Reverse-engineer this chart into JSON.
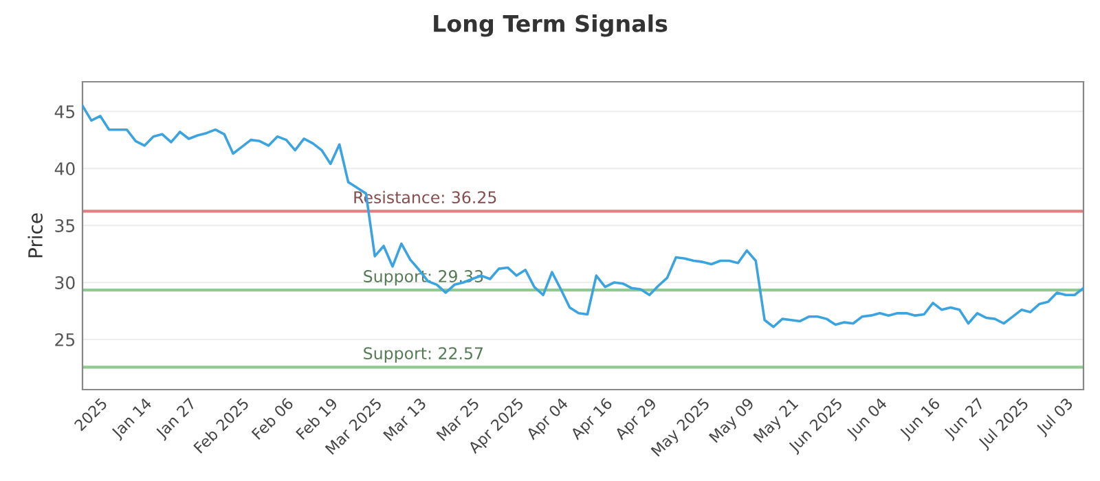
{
  "chart_data": {
    "type": "line",
    "title": "Long Term Signals",
    "ylabel": "Price",
    "categories": [
      null,
      null,
      "2025",
      null,
      null,
      null,
      null,
      "Jan 14",
      null,
      null,
      null,
      null,
      "Jan 27",
      null,
      null,
      null,
      null,
      null,
      "Feb 2025",
      null,
      null,
      null,
      null,
      "Feb 06",
      null,
      null,
      null,
      null,
      "Feb 19",
      null,
      null,
      null,
      null,
      "Mar 2025",
      null,
      null,
      null,
      null,
      "Mar 13",
      null,
      null,
      null,
      null,
      null,
      "Mar 25",
      null,
      null,
      null,
      null,
      "Apr 2025",
      null,
      null,
      null,
      null,
      "Apr 04",
      null,
      null,
      null,
      null,
      "Apr 16",
      null,
      null,
      null,
      null,
      "Apr 29",
      null,
      null,
      null,
      null,
      null,
      "May 2025",
      null,
      null,
      null,
      null,
      "May 09",
      null,
      null,
      null,
      null,
      "May 21",
      null,
      null,
      null,
      null,
      "Jun 2025",
      null,
      null,
      null,
      null,
      "Jun 04",
      null,
      null,
      null,
      null,
      null,
      "Jun 16",
      null,
      null,
      null,
      null,
      "Jun 27",
      null,
      null,
      null,
      null,
      "Jul 2025",
      null,
      null,
      null,
      null,
      "Jul 03",
      null,
      null
    ],
    "series": [
      {
        "color": "#3aa3e0",
        "values": [
          45.5,
          44.2,
          44.6,
          43.4,
          43.4,
          43.4,
          42.4,
          42.0,
          42.8,
          43.0,
          42.3,
          43.2,
          42.6,
          42.9,
          43.1,
          43.4,
          43.0,
          41.3,
          41.9,
          42.5,
          42.4,
          42.0,
          42.8,
          42.5,
          41.6,
          42.6,
          42.2,
          41.6,
          40.4,
          42.1,
          38.8,
          38.3,
          37.8,
          32.3,
          33.2,
          31.4,
          33.4,
          32.0,
          31.1,
          30.1,
          29.8,
          29.1,
          29.8,
          30.0,
          30.3,
          30.6,
          30.3,
          31.2,
          31.3,
          30.6,
          31.1,
          29.6,
          28.9,
          30.9,
          29.4,
          27.8,
          27.3,
          27.2,
          30.6,
          29.6,
          30.0,
          29.9,
          29.5,
          29.4,
          28.9,
          29.7,
          30.4,
          32.2,
          32.1,
          31.9,
          31.8,
          31.6,
          31.9,
          31.9,
          31.7,
          32.8,
          31.9,
          26.7,
          26.1,
          26.8,
          26.7,
          26.6,
          27.0,
          27.0,
          26.8,
          26.3,
          26.5,
          26.4,
          27.0,
          27.1,
          27.3,
          27.1,
          27.3,
          27.3,
          27.1,
          27.2,
          28.2,
          27.6,
          27.8,
          27.6,
          26.4,
          27.3,
          26.9,
          26.8,
          26.4,
          27.0,
          27.6,
          27.4,
          28.1,
          28.3,
          29.1,
          28.9,
          28.9,
          29.5
        ]
      }
    ],
    "ylim": [
      20.6,
      47.6
    ],
    "yticks": [
      25,
      30,
      35,
      40,
      45
    ],
    "grid": "y",
    "ref_lines": [
      {
        "axis": "y",
        "value": 36.25,
        "label": "Resistance: 36.25",
        "color": "#e08080"
      },
      {
        "axis": "y",
        "value": 29.33,
        "label": "Support: 29.33",
        "color": "#8fca8f"
      },
      {
        "axis": "y",
        "value": 22.57,
        "label": "Support: 22.57",
        "color": "#8fca8f"
      }
    ]
  }
}
